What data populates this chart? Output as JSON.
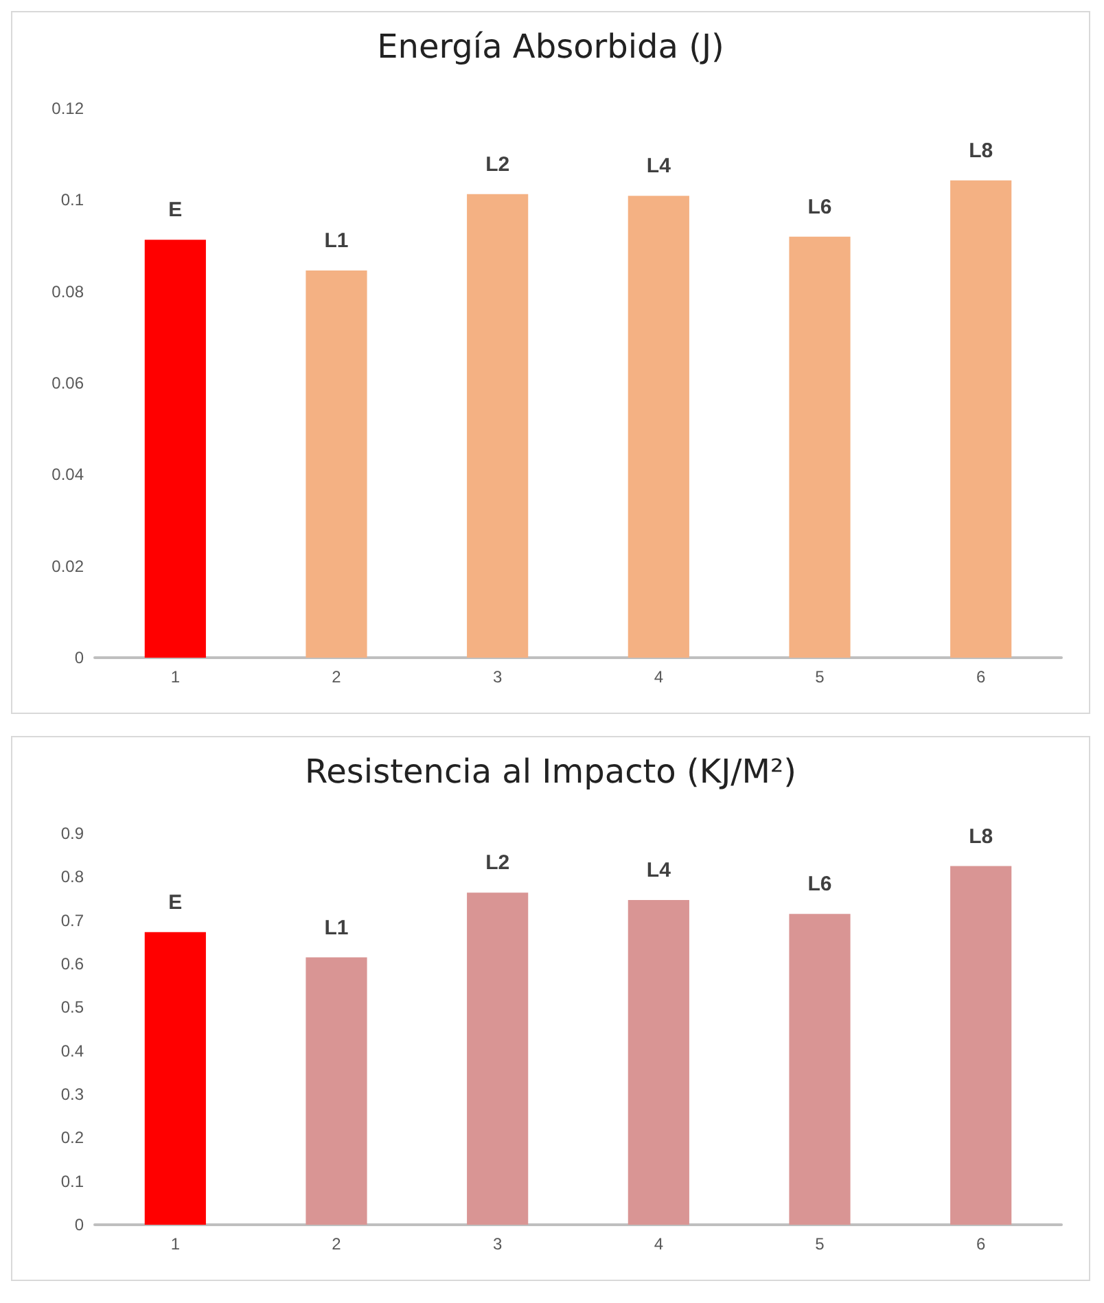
{
  "chart_data": [
    {
      "type": "bar",
      "title": "Energía Absorbida (J)",
      "categories": [
        "1",
        "2",
        "3",
        "4",
        "5",
        "6"
      ],
      "values": [
        0.0913,
        0.0846,
        0.1013,
        0.1009,
        0.092,
        0.1043
      ],
      "colors": [
        "#ff0000",
        "#f4b183",
        "#f4b183",
        "#f4b183",
        "#f4b183",
        "#f4b183"
      ],
      "value_labels": [
        "E",
        "L1",
        "L2",
        "L4",
        "L6",
        "L8"
      ],
      "ylim": [
        0,
        0.12
      ],
      "yticks": [
        0,
        0.02,
        0.04,
        0.06,
        0.08,
        0.1,
        0.12
      ]
    },
    {
      "type": "bar",
      "title": "Resistencia al Impacto (KJ/M²)",
      "categories": [
        "1",
        "2",
        "3",
        "4",
        "5",
        "6"
      ],
      "values": [
        0.673,
        0.615,
        0.764,
        0.747,
        0.715,
        0.825
      ],
      "colors": [
        "#ff0000",
        "#d99594",
        "#d99594",
        "#d99594",
        "#d99594",
        "#d99594"
      ],
      "value_labels": [
        "E",
        "L1",
        "L2",
        "L4",
        "L6",
        "L8"
      ],
      "ylim": [
        0,
        0.9
      ],
      "yticks": [
        0,
        0.1,
        0.2,
        0.3,
        0.4,
        0.5,
        0.6,
        0.7,
        0.8,
        0.9
      ]
    }
  ]
}
